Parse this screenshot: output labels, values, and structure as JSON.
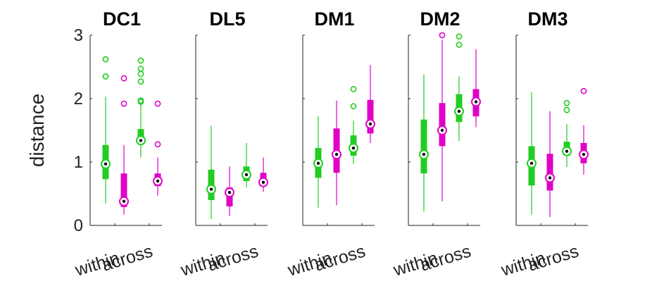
{
  "chart_data": {
    "type": "boxplot",
    "ylabel": "distance",
    "ylim": [
      0,
      3
    ],
    "yticks": [
      "0",
      "1",
      "2",
      "3"
    ],
    "categories": [
      "within",
      "across",
      "within",
      "across"
    ],
    "category_labels": [
      "within",
      "across"
    ],
    "colors": {
      "green": "#22cc22",
      "magenta": "#e000c8"
    },
    "panels": [
      {
        "title": "DC1",
        "boxes": [
          {
            "color": "#22cc22",
            "whisker_low": 0.35,
            "q1": 0.73,
            "median": 0.97,
            "q3": 1.27,
            "whisker_high": 2.03,
            "outliers": [
              2.35,
              2.62
            ]
          },
          {
            "color": "#e000c8",
            "whisker_low": 0.17,
            "q1": 0.29,
            "median": 0.38,
            "q3": 0.82,
            "whisker_high": 1.27,
            "outliers": [
              1.92,
              2.32
            ]
          },
          {
            "color": "#22cc22",
            "whisker_low": 1.07,
            "q1": 1.28,
            "median": 1.34,
            "q3": 1.52,
            "whisker_high": 1.92,
            "outliers": [
              1.95,
              1.97,
              2.27,
              2.39,
              2.47,
              2.6
            ]
          },
          {
            "color": "#e000c8",
            "whisker_low": 0.47,
            "q1": 0.62,
            "median": 0.7,
            "q3": 0.82,
            "whisker_high": 1.07,
            "outliers": [
              1.28,
              1.92
            ]
          }
        ]
      },
      {
        "title": "DL5",
        "boxes": [
          {
            "color": "#22cc22",
            "whisker_low": 0.1,
            "q1": 0.4,
            "median": 0.57,
            "q3": 0.88,
            "whisker_high": 1.57,
            "outliers": []
          },
          {
            "color": "#e000c8",
            "whisker_low": 0.15,
            "q1": 0.3,
            "median": 0.52,
            "q3": 0.6,
            "whisker_high": 0.93,
            "outliers": []
          },
          {
            "color": "#22cc22",
            "whisker_low": 0.6,
            "q1": 0.7,
            "median": 0.8,
            "q3": 0.93,
            "whisker_high": 1.3,
            "outliers": []
          },
          {
            "color": "#e000c8",
            "whisker_low": 0.53,
            "q1": 0.62,
            "median": 0.68,
            "q3": 0.83,
            "whisker_high": 1.07,
            "outliers": []
          }
        ]
      },
      {
        "title": "DM1",
        "boxes": [
          {
            "color": "#22cc22",
            "whisker_low": 0.28,
            "q1": 0.75,
            "median": 0.98,
            "q3": 1.22,
            "whisker_high": 1.72,
            "outliers": []
          },
          {
            "color": "#e000c8",
            "whisker_low": 0.32,
            "q1": 0.83,
            "median": 1.12,
            "q3": 1.53,
            "whisker_high": 1.97,
            "outliers": []
          },
          {
            "color": "#22cc22",
            "whisker_low": 0.97,
            "q1": 1.1,
            "median": 1.22,
            "q3": 1.42,
            "whisker_high": 1.65,
            "outliers": [
              1.88,
              2.15
            ]
          },
          {
            "color": "#e000c8",
            "whisker_low": 1.3,
            "q1": 1.45,
            "median": 1.6,
            "q3": 1.98,
            "whisker_high": 2.53,
            "outliers": []
          }
        ]
      },
      {
        "title": "DM2",
        "boxes": [
          {
            "color": "#22cc22",
            "whisker_low": 0.22,
            "q1": 0.82,
            "median": 1.12,
            "q3": 1.67,
            "whisker_high": 2.38,
            "outliers": []
          },
          {
            "color": "#e000c8",
            "whisker_low": 0.38,
            "q1": 1.25,
            "median": 1.5,
            "q3": 1.93,
            "whisker_high": 2.93,
            "outliers": [
              3.0
            ]
          },
          {
            "color": "#22cc22",
            "whisker_low": 1.33,
            "q1": 1.63,
            "median": 1.8,
            "q3": 2.07,
            "whisker_high": 2.35,
            "outliers": [
              2.85,
              2.98
            ]
          },
          {
            "color": "#e000c8",
            "whisker_low": 1.55,
            "q1": 1.72,
            "median": 1.95,
            "q3": 2.15,
            "whisker_high": 2.78,
            "outliers": []
          }
        ]
      },
      {
        "title": "DM3",
        "boxes": [
          {
            "color": "#22cc22",
            "whisker_low": 0.17,
            "q1": 0.63,
            "median": 0.98,
            "q3": 1.25,
            "whisker_high": 2.1,
            "outliers": []
          },
          {
            "color": "#e000c8",
            "whisker_low": 0.13,
            "q1": 0.55,
            "median": 0.75,
            "q3": 1.13,
            "whisker_high": 1.8,
            "outliers": []
          },
          {
            "color": "#22cc22",
            "whisker_low": 0.92,
            "q1": 1.1,
            "median": 1.17,
            "q3": 1.32,
            "whisker_high": 1.6,
            "outliers": [
              1.82,
              1.93
            ]
          },
          {
            "color": "#e000c8",
            "whisker_low": 0.8,
            "q1": 0.98,
            "median": 1.12,
            "q3": 1.3,
            "whisker_high": 1.58,
            "outliers": [
              2.12
            ]
          }
        ]
      }
    ]
  }
}
